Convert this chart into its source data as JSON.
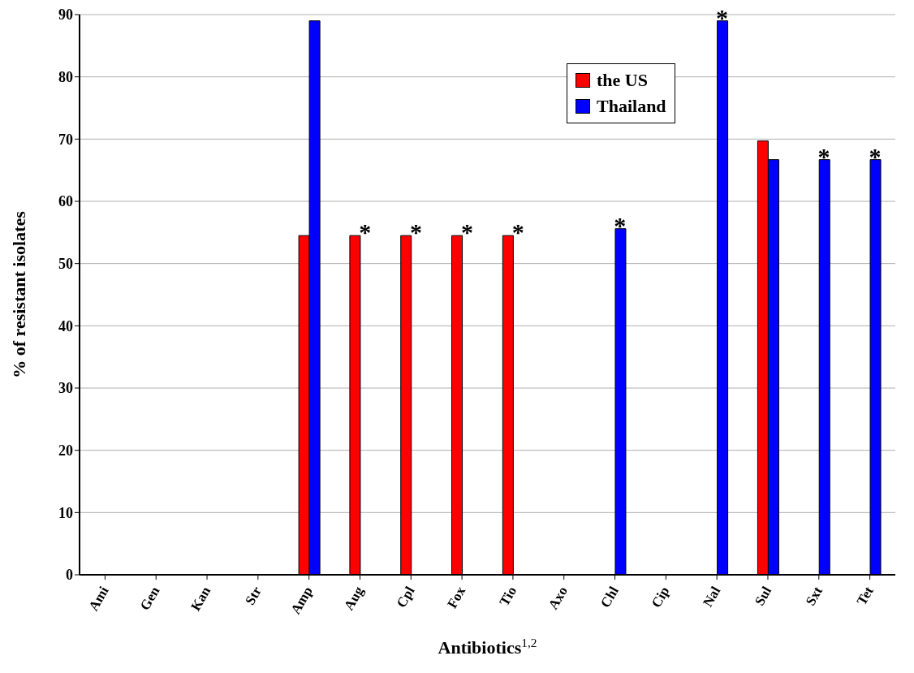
{
  "chart_data": {
    "type": "bar",
    "xlabel": "Antibiotics$^{1,2}$",
    "ylabel": "% of resistant isolates",
    "categories": [
      "Ami",
      "Gen",
      "Kan",
      "Str",
      "Amp",
      "Aug",
      "Cpl",
      "Fox",
      "Tio",
      "Axo",
      "Chl",
      "Cip",
      "Nal",
      "Sul",
      "Sxt",
      "Tet"
    ],
    "series": [
      {
        "name": "the US",
        "color": "#ff0000",
        "values": [
          0,
          0,
          0,
          0,
          54.5,
          54.5,
          54.5,
          54.5,
          54.5,
          0,
          0,
          0,
          0,
          69.7,
          0,
          0
        ]
      },
      {
        "name": "Thailand",
        "color": "#0000ff",
        "values": [
          0,
          0,
          0,
          0,
          89,
          0,
          0,
          0,
          0,
          0,
          55.6,
          0,
          89,
          66.7,
          66.7,
          66.7
        ]
      }
    ],
    "ylim": [
      0,
      90
    ],
    "yticks": [
      0,
      10,
      20,
      30,
      40,
      50,
      60,
      70,
      80,
      90
    ],
    "grid": "y",
    "legend": "top right",
    "annotations": [
      {
        "text": "*",
        "x": "Aug",
        "y": 54.5
      },
      {
        "text": "*",
        "x": "Cpl",
        "y": 54.5
      },
      {
        "text": "*",
        "x": "Fox",
        "y": 54.5
      },
      {
        "text": "*",
        "x": "Tio",
        "y": 54.5
      },
      {
        "text": "*",
        "x": "Chl",
        "y": 55.6
      },
      {
        "text": "*",
        "x": "Nal",
        "y": 89
      },
      {
        "text": "*",
        "x": "Sxt",
        "y": 66.7
      },
      {
        "text": "*",
        "x": "Tet",
        "y": 66.7
      }
    ]
  }
}
